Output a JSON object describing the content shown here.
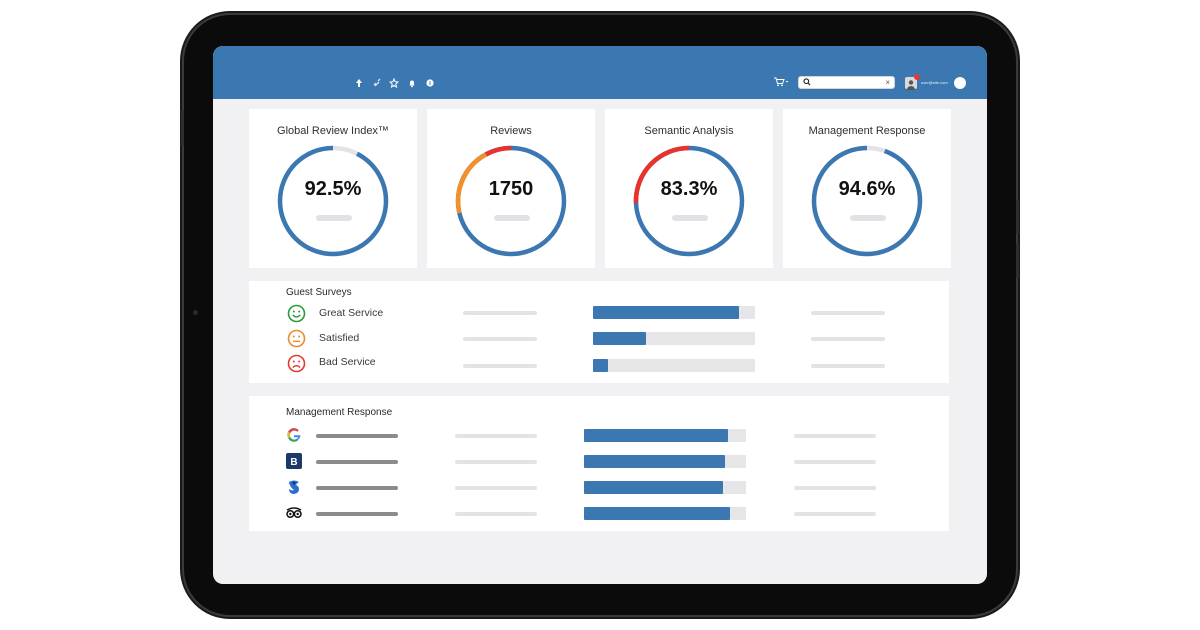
{
  "header": {
    "icons": [
      "upload-icon",
      "link-icon",
      "star-icon",
      "bell-icon",
      "info-icon"
    ],
    "cart_icon": "cart-icon",
    "search": {
      "value": "",
      "placeholder": ""
    },
    "user_email": "user@site.com",
    "notification_count": "1"
  },
  "kpis": [
    {
      "title": "Global Review Index™",
      "value": "92.5%",
      "fraction": 0.925,
      "color": "#3b78b2"
    },
    {
      "title": "Reviews",
      "value": "1750",
      "fraction": 1.0,
      "color": "#3b78b2"
    },
    {
      "title": "Semantic Analysis",
      "value": "83.3%",
      "fraction": 0.833,
      "color": "#3b78b2"
    },
    {
      "title": "Management Response",
      "value": "94.6%",
      "fraction": 0.946,
      "color": "#3b78b2"
    }
  ],
  "guest_surveys": {
    "title": "Guest Surveys",
    "rows": [
      {
        "label": "Great Service",
        "icon": "happy-face-icon",
        "color": "#2a9a3a",
        "fraction": 0.9
      },
      {
        "label": "Satisfied",
        "icon": "neutral-face-icon",
        "color": "#f0892a",
        "fraction": 0.33
      },
      {
        "label": "Bad Service",
        "icon": "sad-face-icon",
        "color": "#e23a2f",
        "fraction": 0.09
      }
    ]
  },
  "management_response": {
    "title": "Management Response",
    "rows": [
      {
        "source": "google",
        "icon": "google-icon",
        "fraction": 0.89
      },
      {
        "source": "booking",
        "icon": "booking-icon",
        "letter": "B",
        "fraction": 0.87
      },
      {
        "source": "trivago",
        "icon": "trivago-icon",
        "fraction": 0.86
      },
      {
        "source": "tripadvisor",
        "icon": "tripadvisor-icon",
        "fraction": 0.9
      }
    ]
  }
}
